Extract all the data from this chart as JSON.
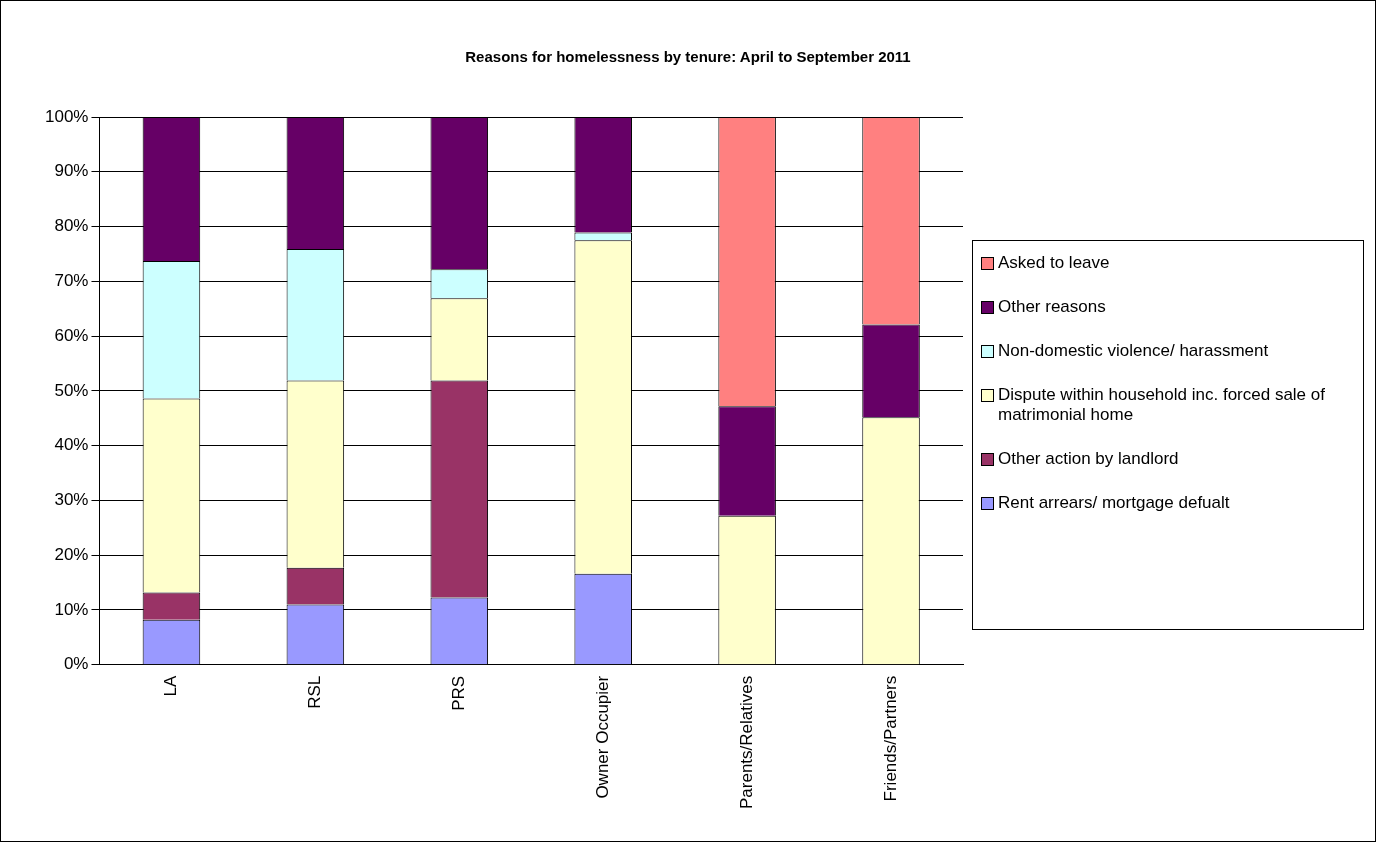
{
  "chart_data": {
    "type": "bar",
    "title": "Reasons for homelessness by tenure: April to September 2011",
    "stacked": true,
    "categories": [
      "LA",
      "RSL",
      "PRS",
      "Owner Occupier",
      "Parents/Relatives",
      "Friends/Partners"
    ],
    "series": [
      {
        "name": "Rent arrears/ mortgage defualt",
        "color": "#9999ff",
        "values": [
          8.2,
          11.0,
          12.3,
          16.6,
          0,
          0
        ]
      },
      {
        "name": "Other action by landlord",
        "color": "#993366",
        "values": [
          5.0,
          6.7,
          39.6,
          0,
          0,
          0
        ]
      },
      {
        "name": "Dispute within household inc. forced sale of matrimonial home",
        "color": "#ffffcc",
        "values": [
          35.4,
          34.2,
          15.0,
          60.9,
          27.2,
          45.2
        ]
      },
      {
        "name": "Non-domestic violence/ harassment",
        "color": "#ccffff",
        "values": [
          25.1,
          24.0,
          5.3,
          1.4,
          0,
          0
        ]
      },
      {
        "name": "Other reasons",
        "color": "#660066",
        "values": [
          26.3,
          24.1,
          27.8,
          21.1,
          20.0,
          16.9
        ]
      },
      {
        "name": "Asked to leave",
        "color": "#ff8080",
        "values": [
          0,
          0,
          0,
          0,
          52.8,
          37.9
        ]
      }
    ],
    "ylim": [
      0,
      100
    ],
    "yticks": [
      {
        "value": 0,
        "label": "0%"
      },
      {
        "value": 10,
        "label": "10%"
      },
      {
        "value": 20,
        "label": "20%"
      },
      {
        "value": 30,
        "label": "30%"
      },
      {
        "value": 40,
        "label": "40%"
      },
      {
        "value": 50,
        "label": "50%"
      },
      {
        "value": 60,
        "label": "60%"
      },
      {
        "value": 70,
        "label": "70%"
      },
      {
        "value": 80,
        "label": "80%"
      },
      {
        "value": 90,
        "label": "90%"
      },
      {
        "value": 100,
        "label": "100%"
      }
    ],
    "grid": "y",
    "legend": "right"
  }
}
